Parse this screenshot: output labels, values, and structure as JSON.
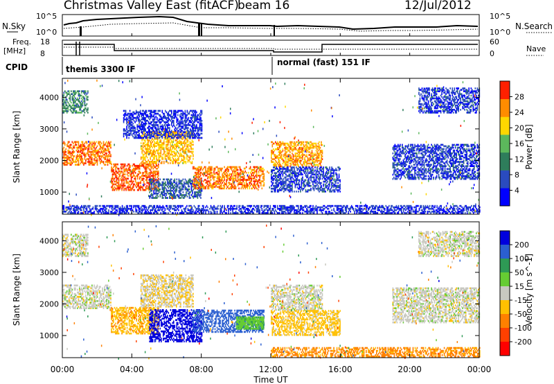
{
  "header": {
    "title": "Christmas Valley East (fitACF)",
    "beam": "beam 16",
    "date": "12/Jul/2012"
  },
  "strip": {
    "nsky_label": "N.Sky",
    "nsearch_label": "N.Search",
    "noise_left_ticks": [
      "10^5",
      "10^0"
    ],
    "noise_right_ticks": [
      "10^5",
      "10^0"
    ],
    "freq_label": "Freq.",
    "freq_unit": "[MHz]",
    "freq_ticks": [
      "18",
      "8"
    ],
    "nave_label": "Nave",
    "nave_ticks": [
      "60",
      "0"
    ],
    "cpid_label": "CPID",
    "cpid_modes": [
      "themis 3300 IF",
      "normal (fast) 151 IF"
    ]
  },
  "chart_data": [
    {
      "type": "heatmap",
      "panel": "power",
      "ylabel": "Slant Range [km]",
      "yticks": [
        1000,
        2000,
        3000,
        4000
      ],
      "ylim": [
        300,
        4600
      ],
      "xlim": [
        0,
        24
      ],
      "colorbar": {
        "label": "Power [dB]",
        "ticks": [
          4,
          8,
          12,
          16,
          20,
          24,
          28
        ],
        "colors": [
          "#0000ff",
          "#2a4bbf",
          "#2e7d5b",
          "#5cb85c",
          "#ffd700",
          "#ff8c00",
          "#ff2000"
        ]
      },
      "regions": [
        {
          "t0": 0.0,
          "t1": 2.8,
          "r0": 1850,
          "r1": 2600,
          "v": 26
        },
        {
          "t0": 0.0,
          "t1": 1.5,
          "r0": 3500,
          "r1": 4200,
          "v": 12
        },
        {
          "t0": 2.8,
          "t1": 5.5,
          "r0": 1050,
          "r1": 1900,
          "v": 27
        },
        {
          "t0": 4.5,
          "t1": 7.5,
          "r0": 1900,
          "r1": 2900,
          "v": 22
        },
        {
          "t0": 5.0,
          "t1": 8.0,
          "r0": 800,
          "r1": 1400,
          "v": 8
        },
        {
          "t0": 7.5,
          "t1": 11.6,
          "r0": 1100,
          "r1": 1800,
          "v": 26
        },
        {
          "t0": 3.5,
          "t1": 8.0,
          "r0": 2700,
          "r1": 3600,
          "v": 5
        },
        {
          "t0": 12.0,
          "t1": 15.0,
          "r0": 1800,
          "r1": 2600,
          "v": 24
        },
        {
          "t0": 12.0,
          "t1": 16.0,
          "r0": 1000,
          "r1": 1800,
          "v": 6
        },
        {
          "t0": 19.0,
          "t1": 24.0,
          "r0": 1400,
          "r1": 2500,
          "v": 6
        },
        {
          "t0": 20.5,
          "t1": 24.0,
          "r0": 3500,
          "r1": 4300,
          "v": 6
        },
        {
          "t0": 0.0,
          "t1": 24.0,
          "r0": 320,
          "r1": 550,
          "v": 5
        }
      ]
    },
    {
      "type": "heatmap",
      "panel": "velocity",
      "xlabel": "Time UT",
      "ylabel": "Slant Range [km]",
      "xticks": [
        "00:00",
        "04:00",
        "08:00",
        "12:00",
        "16:00",
        "20:00",
        "00:00"
      ],
      "yticks": [
        1000,
        2000,
        3000,
        4000
      ],
      "ylim": [
        300,
        4600
      ],
      "xlim": [
        0,
        24
      ],
      "colorbar": {
        "label": "Velocity [m s^-1]",
        "ticks": [
          200,
          100,
          50,
          15,
          -15,
          -50,
          -100,
          -200
        ],
        "colors": [
          "#0000dd",
          "#2b5fd0",
          "#2e9a55",
          "#66cc33",
          "#c8c8c0",
          "#ffc000",
          "#ff8000",
          "#ff4000",
          "#ff0000"
        ]
      },
      "regions": [
        {
          "t0": 0.0,
          "t1": 2.8,
          "r0": 1850,
          "r1": 2600,
          "v": 0
        },
        {
          "t0": 0.0,
          "t1": 1.5,
          "r0": 3500,
          "r1": 4200,
          "v": 0
        },
        {
          "t0": 2.8,
          "t1": 5.5,
          "r0": 1050,
          "r1": 1900,
          "v": -40
        },
        {
          "t0": 4.5,
          "t1": 7.5,
          "r0": 1900,
          "r1": 2900,
          "v": -10
        },
        {
          "t0": 5.0,
          "t1": 8.0,
          "r0": 800,
          "r1": 1800,
          "v": 220
        },
        {
          "t0": 7.5,
          "t1": 11.6,
          "r0": 1100,
          "r1": 1800,
          "v": 180
        },
        {
          "t0": 10.0,
          "t1": 11.6,
          "r0": 1200,
          "r1": 1600,
          "v": 40
        },
        {
          "t0": 12.0,
          "t1": 15.0,
          "r0": 1800,
          "r1": 2600,
          "v": 0
        },
        {
          "t0": 12.0,
          "t1": 16.0,
          "r0": 1000,
          "r1": 1800,
          "v": -30
        },
        {
          "t0": 19.0,
          "t1": 24.0,
          "r0": 1400,
          "r1": 2500,
          "v": 0
        },
        {
          "t0": 20.5,
          "t1": 24.0,
          "r0": 3500,
          "r1": 4300,
          "v": 0
        },
        {
          "t0": 12.0,
          "t1": 24.0,
          "r0": 320,
          "r1": 600,
          "v": -60
        }
      ]
    }
  ]
}
